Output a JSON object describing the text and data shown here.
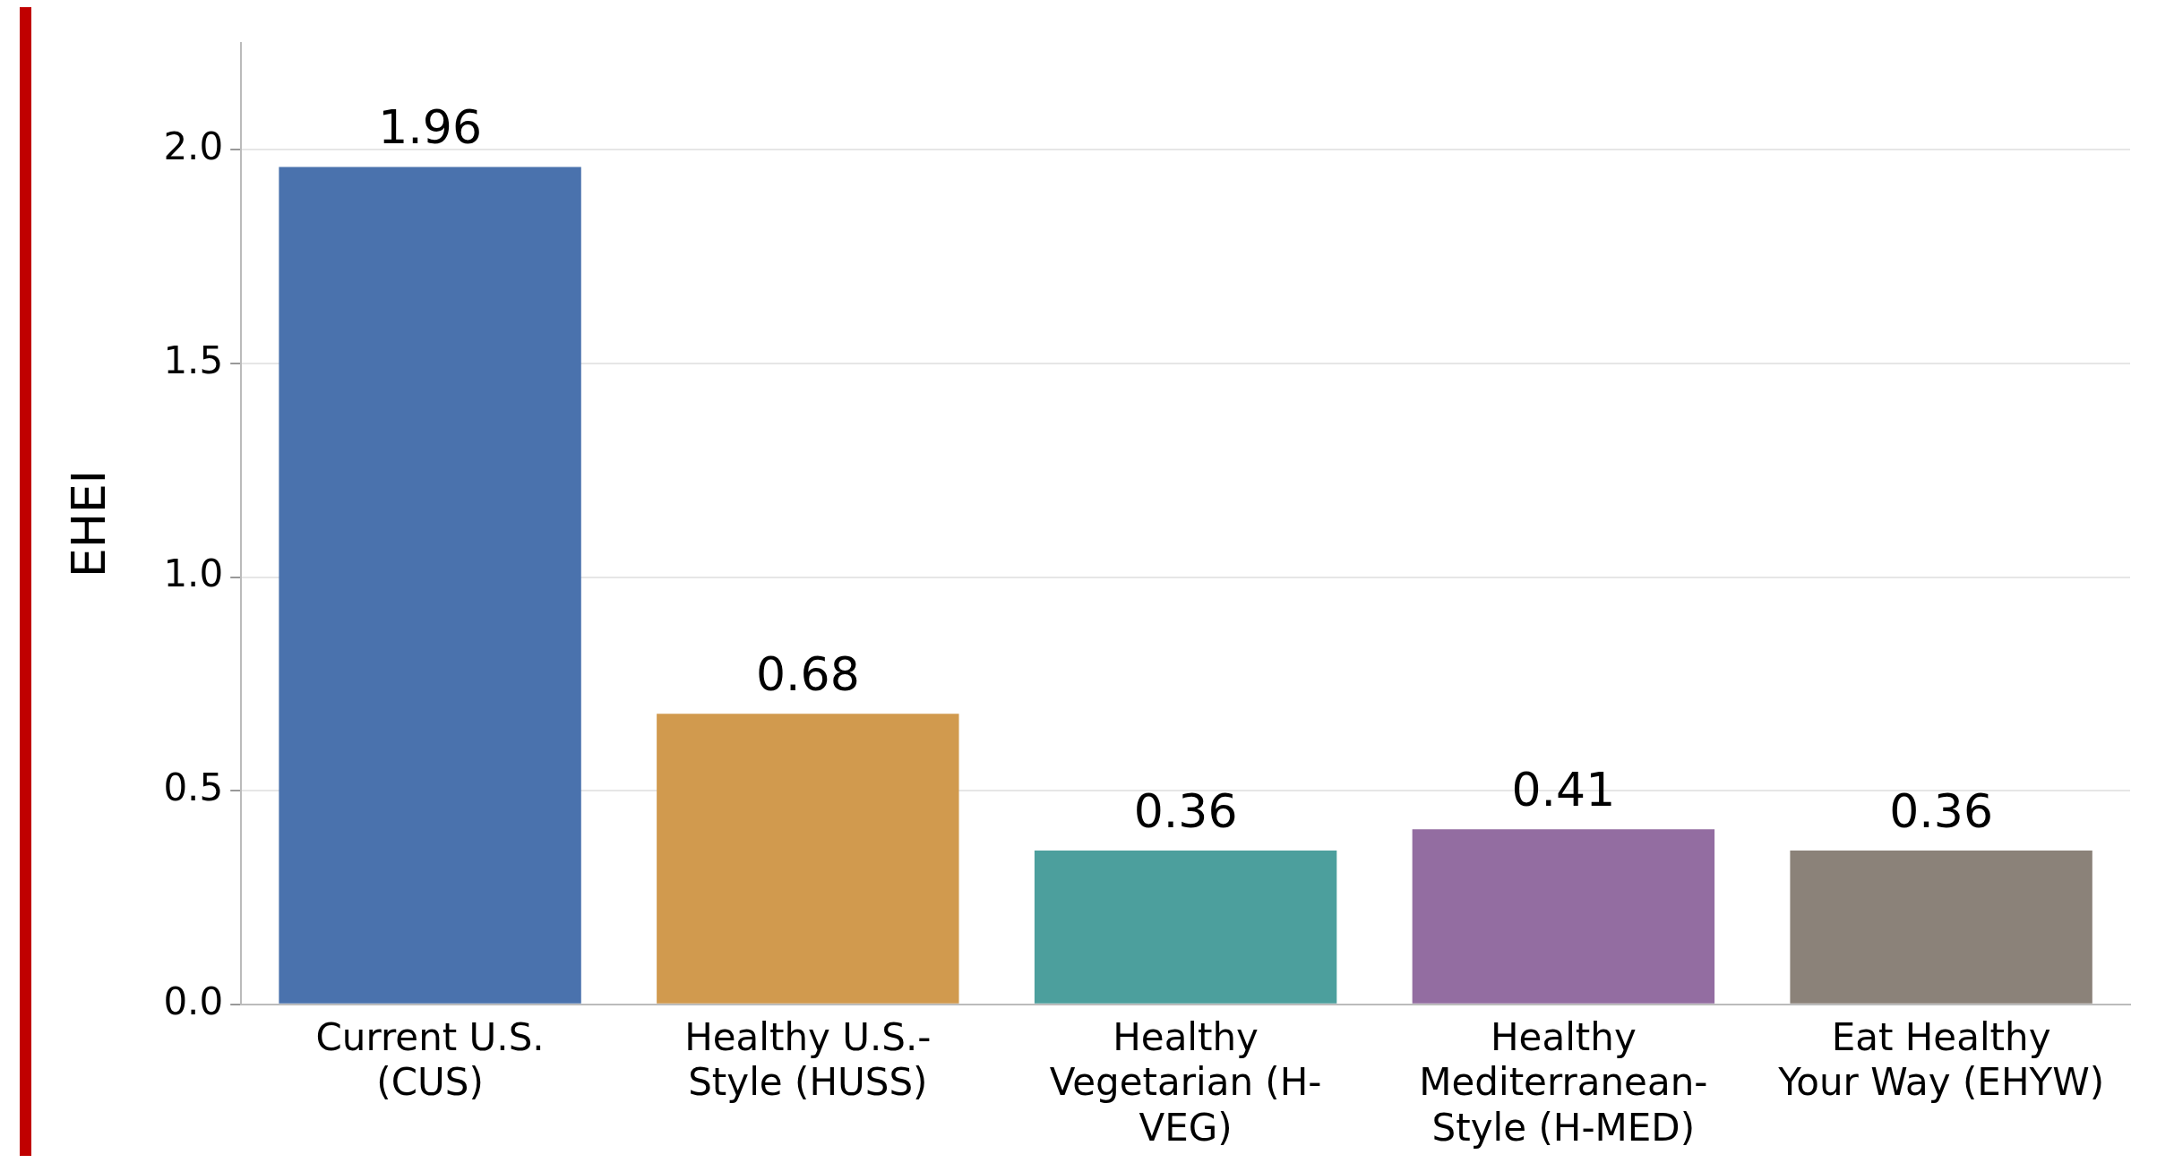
{
  "chart_data": {
    "type": "bar",
    "ylabel": "EHEI",
    "categories": [
      "Current U.S. (CUS)",
      "Healthy U.S.-Style (HUSS)",
      "Healthy Vegetarian (H-VEG)",
      "Healthy Mediterranean-Style (H-MED)",
      "Eat Healthy Your Way (EHYW)"
    ],
    "values": [
      1.96,
      0.68,
      0.36,
      0.41,
      0.36
    ],
    "colors": [
      "#4a72ad",
      "#d19a4e",
      "#4c9f9d",
      "#936da1",
      "#8b8279"
    ],
    "ylim": [
      0,
      2.25
    ],
    "yticks": [
      {
        "value": 0,
        "label": "0.0"
      },
      {
        "value": 0.5,
        "label": "0.5"
      },
      {
        "value": 1,
        "label": "1.0"
      },
      {
        "value": 1.5,
        "label": "1.5"
      },
      {
        "value": 2,
        "label": "2.0"
      }
    ],
    "grid": "y",
    "data_labels": true,
    "legend": false
  }
}
